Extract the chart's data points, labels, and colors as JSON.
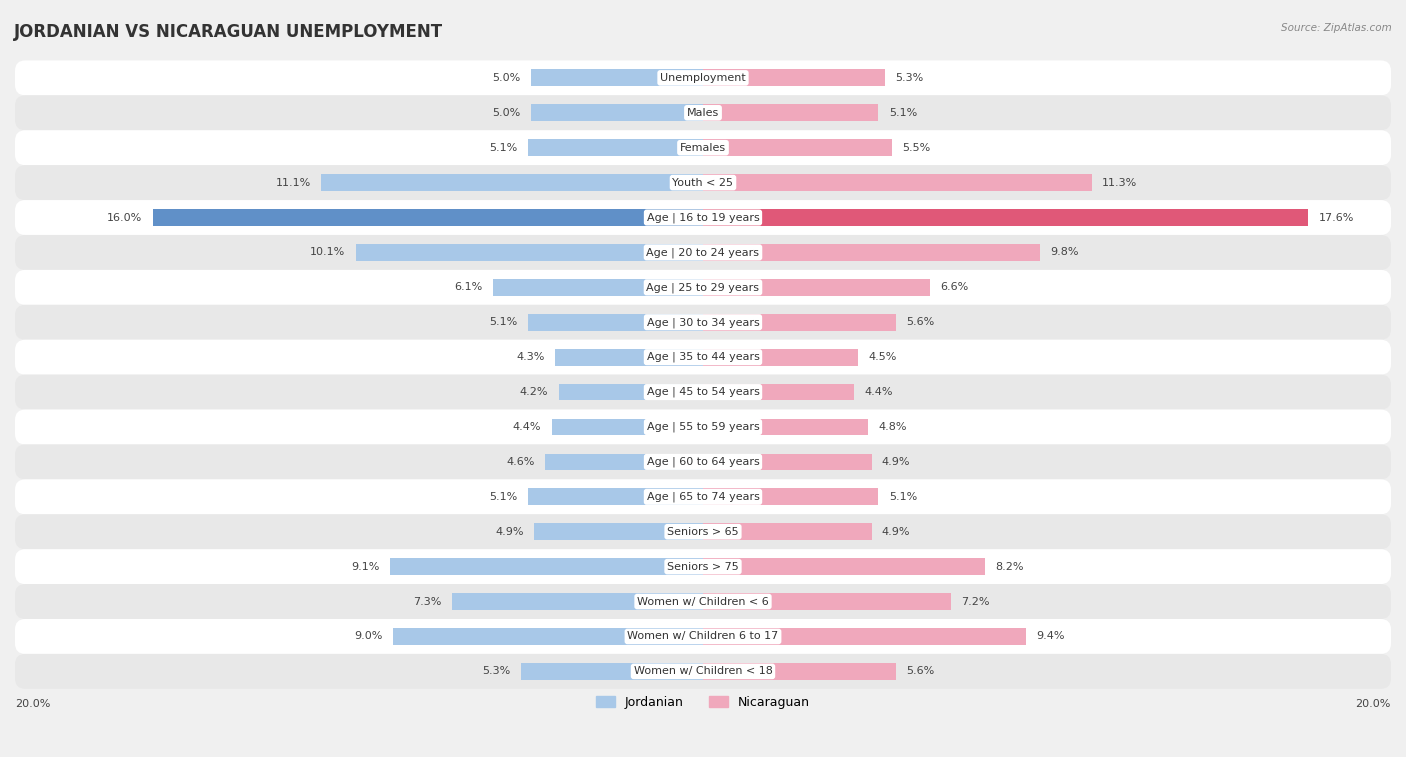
{
  "title": "JORDANIAN VS NICARAGUAN UNEMPLOYMENT",
  "source": "Source: ZipAtlas.com",
  "categories": [
    "Unemployment",
    "Males",
    "Females",
    "Youth < 25",
    "Age | 16 to 19 years",
    "Age | 20 to 24 years",
    "Age | 25 to 29 years",
    "Age | 30 to 34 years",
    "Age | 35 to 44 years",
    "Age | 45 to 54 years",
    "Age | 55 to 59 years",
    "Age | 60 to 64 years",
    "Age | 65 to 74 years",
    "Seniors > 65",
    "Seniors > 75",
    "Women w/ Children < 6",
    "Women w/ Children 6 to 17",
    "Women w/ Children < 18"
  ],
  "jordanian": [
    5.0,
    5.0,
    5.1,
    11.1,
    16.0,
    10.1,
    6.1,
    5.1,
    4.3,
    4.2,
    4.4,
    4.6,
    5.1,
    4.9,
    9.1,
    7.3,
    9.0,
    5.3
  ],
  "nicaraguan": [
    5.3,
    5.1,
    5.5,
    11.3,
    17.6,
    9.8,
    6.6,
    5.6,
    4.5,
    4.4,
    4.8,
    4.9,
    5.1,
    4.9,
    8.2,
    7.2,
    9.4,
    5.6
  ],
  "color_jordanian": "#a8c8e8",
  "color_nicaraguan": "#f0a8bc",
  "color_jordanian_highlight": "#6090c8",
  "color_nicaraguan_highlight": "#e05878",
  "bar_height": 0.48,
  "xlim": 20.0,
  "bg_color": "#f0f0f0",
  "row_color_light": "#ffffff",
  "row_color_dark": "#e8e8e8",
  "highlight_row": 4,
  "highlight_row_color": "#d8d8f0",
  "title_fontsize": 12,
  "label_fontsize": 8,
  "value_fontsize": 8,
  "legend_fontsize": 9,
  "title_color": "#333333",
  "source_color": "#888888",
  "text_color": "#444444"
}
